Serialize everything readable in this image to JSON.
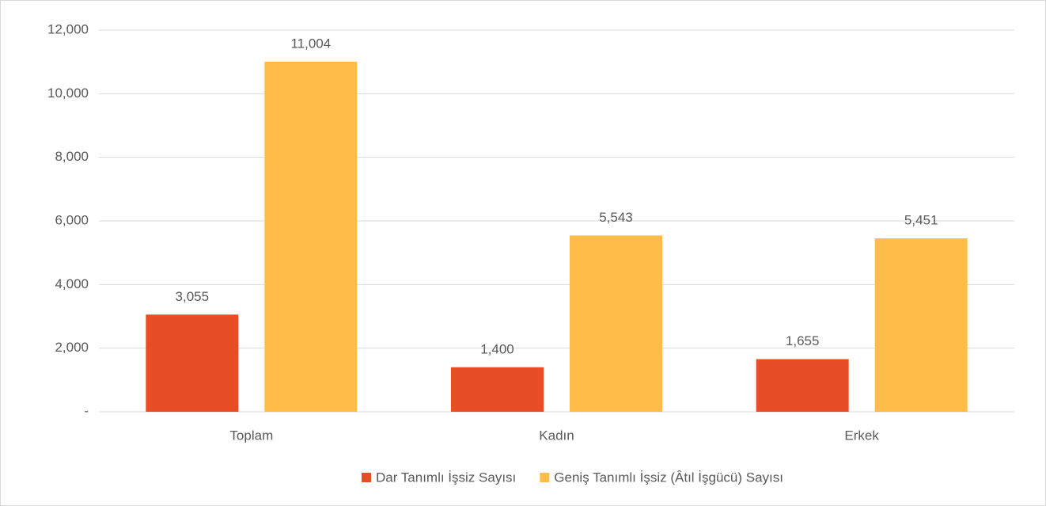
{
  "chart_data": {
    "type": "bar",
    "categories": [
      "Toplam",
      "Kadın",
      "Erkek"
    ],
    "series": [
      {
        "name": "Dar Tanımlı İşsiz Sayısı",
        "color": "#e84e26",
        "values": [
          3055,
          1400,
          1655
        ],
        "value_labels": [
          "3,055",
          "1,400",
          "1,655"
        ]
      },
      {
        "name": "Geniş Tanımlı İşsiz (Âtıl İşgücü) Sayısı",
        "color": "#fdbd48",
        "values": [
          11004,
          5543,
          5451
        ],
        "value_labels": [
          "11,004",
          "5,543",
          "5,451"
        ]
      }
    ],
    "ylim": [
      0,
      12000
    ],
    "yticks": [
      {
        "value": 0,
        "label": "-"
      },
      {
        "value": 2000,
        "label": "2,000"
      },
      {
        "value": 4000,
        "label": "4,000"
      },
      {
        "value": 6000,
        "label": "6,000"
      },
      {
        "value": 8000,
        "label": "8,000"
      },
      {
        "value": 10000,
        "label": "10,000"
      },
      {
        "value": 12000,
        "label": "12,000"
      }
    ],
    "grid": true,
    "legend": "bottom"
  }
}
